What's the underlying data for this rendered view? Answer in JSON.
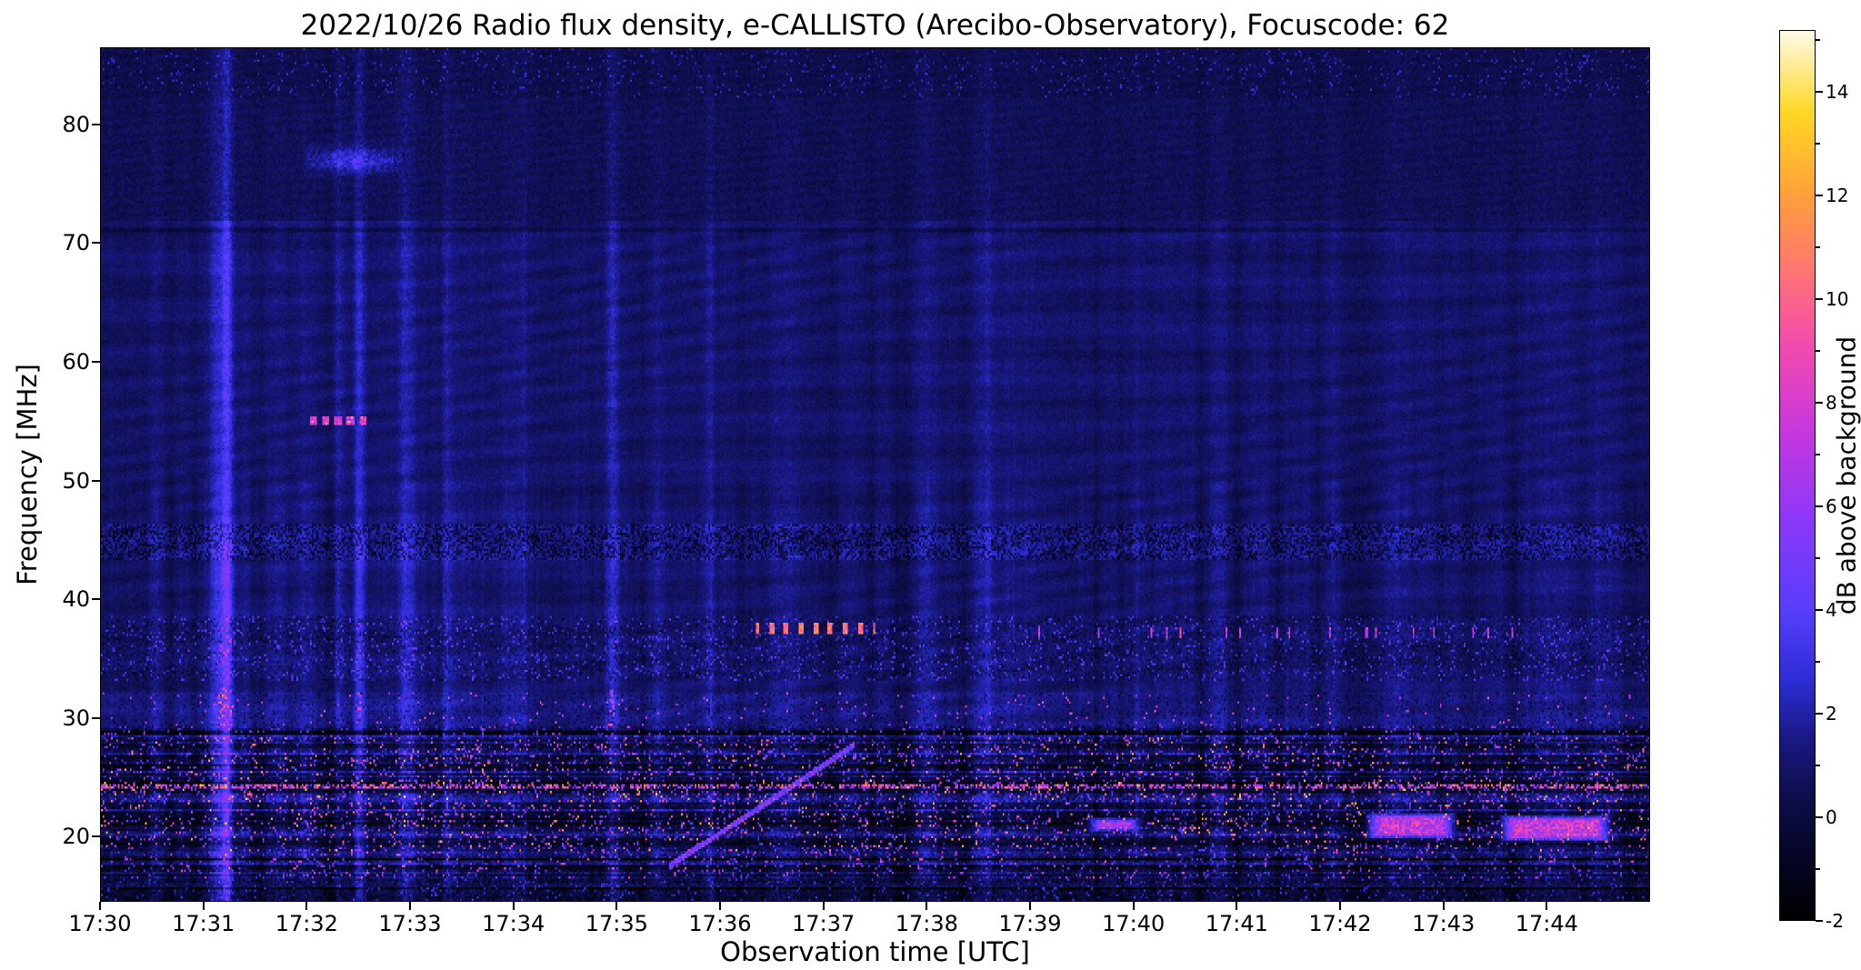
{
  "chart": {
    "title": "2022/10/26  Radio flux density, e-CALLISTO (Arecibo-Observatory), Focuscode: 62",
    "xlabel": "Observation time [UTC]",
    "ylabel": "Frequency [MHz]",
    "colorbar_label": "dB above background"
  },
  "chart_data": {
    "type": "heatmap",
    "title": "2022/10/26  Radio flux density, e-CALLISTO (Arecibo-Observatory), Focuscode: 62",
    "xlabel": "Observation time [UTC]",
    "ylabel": "Frequency [MHz]",
    "x_ticks": [
      "17:30",
      "17:31",
      "17:32",
      "17:33",
      "17:34",
      "17:35",
      "17:36",
      "17:37",
      "17:38",
      "17:39",
      "17:40",
      "17:41",
      "17:42",
      "17:43",
      "17:44"
    ],
    "x_range_minutes": [
      0,
      15
    ],
    "y_ticks": [
      20,
      30,
      40,
      50,
      60,
      70,
      80
    ],
    "y_range_mhz": [
      14.5,
      86.5
    ],
    "grid": false,
    "colorbar": {
      "label": "dB above background",
      "ticks": [
        -2,
        0,
        2,
        4,
        6,
        8,
        10,
        12,
        14
      ],
      "minor_ticks": [
        -1,
        1,
        3,
        5,
        7,
        9,
        11,
        13,
        15
      ],
      "range": [
        -2,
        15.2
      ],
      "position": "right"
    },
    "background_level_db": 0.9,
    "colormap_stops": [
      {
        "t": 0.0,
        "c": [
          0,
          0,
          0
        ]
      },
      {
        "t": 0.07,
        "c": [
          5,
          5,
          38
        ]
      },
      {
        "t": 0.14,
        "c": [
          14,
          14,
          76
        ]
      },
      {
        "t": 0.2,
        "c": [
          24,
          24,
          128
        ]
      },
      {
        "t": 0.27,
        "c": [
          45,
          45,
          215
        ]
      },
      {
        "t": 0.35,
        "c": [
          88,
          62,
          252
        ]
      },
      {
        "t": 0.45,
        "c": [
          140,
          56,
          248
        ]
      },
      {
        "t": 0.55,
        "c": [
          198,
          55,
          222
        ]
      },
      {
        "t": 0.65,
        "c": [
          244,
          76,
          172
        ]
      },
      {
        "t": 0.74,
        "c": [
          255,
          122,
          108
        ]
      },
      {
        "t": 0.82,
        "c": [
          255,
          162,
          56
        ]
      },
      {
        "t": 0.91,
        "c": [
          255,
          216,
          38
        ]
      },
      {
        "t": 1.0,
        "c": [
          255,
          250,
          232
        ]
      }
    ],
    "features": {
      "rfi_bands": [
        {
          "f0": 16.2,
          "f1": 18.6,
          "amp": 0.55
        },
        {
          "f0": 18.6,
          "f1": 22.9,
          "amp": 0.85
        },
        {
          "f0": 22.9,
          "f1": 24.7,
          "amp": 0.95
        },
        {
          "f0": 24.7,
          "f1": 28.3,
          "amp": 0.8
        },
        {
          "f0": 28.3,
          "f1": 29.3,
          "amp": 0.4
        }
      ],
      "vertical_streaks": [
        {
          "t": 1.12,
          "w": 0.05,
          "strength": 1.6
        },
        {
          "t": 1.22,
          "w": 0.035,
          "strength": 3.4
        },
        {
          "t": 2.3,
          "w": 0.04,
          "strength": 1.6
        },
        {
          "t": 2.5,
          "w": 0.035,
          "strength": 2.0
        },
        {
          "t": 2.95,
          "w": 0.05,
          "strength": 1.4
        },
        {
          "t": 3.35,
          "w": 0.03,
          "strength": 0.9
        },
        {
          "t": 4.1,
          "w": 0.04,
          "strength": 0.8
        },
        {
          "t": 4.95,
          "w": 0.045,
          "strength": 1.9
        },
        {
          "t": 5.9,
          "w": 0.03,
          "strength": 0.9
        },
        {
          "t": 8.6,
          "w": 0.03,
          "strength": 0.6
        }
      ],
      "bright_features": [
        {
          "mode": "dashes",
          "t0": 2.02,
          "t1": 2.62,
          "f0": 54.6,
          "f1": 55.4,
          "value": 8.5,
          "label": "55 MHz narrowband burst"
        },
        {
          "mode": "blob",
          "t0": 1.98,
          "t1": 2.92,
          "f0": 75.9,
          "f1": 78.3,
          "value": 2.4,
          "label": "77 MHz enhancement"
        },
        {
          "mode": "dots",
          "t0": 6.35,
          "t1": 7.5,
          "f0": 37.1,
          "f1": 37.9,
          "value": 11,
          "label": "37.5 MHz dotted bursts"
        },
        {
          "mode": "sparse",
          "t0": 9.0,
          "t1": 15.0,
          "f0": 36.7,
          "f1": 37.6,
          "value": 8.5,
          "label": "37 MHz intermittent spikes"
        },
        {
          "mode": "diagonal",
          "t0": 5.5,
          "t1": 7.3,
          "f0": 17.3,
          "f1": 27.6,
          "value": 5.5,
          "label": "drifting RFI carrier"
        },
        {
          "mode": "patch",
          "t0": 12.25,
          "t1": 13.15,
          "f0": 19.6,
          "f1": 21.9,
          "value": 9.5,
          "label": "20 MHz RFI patch"
        },
        {
          "mode": "patch",
          "t0": 13.55,
          "t1": 14.65,
          "f0": 19.4,
          "f1": 21.7,
          "value": 9.8,
          "label": "20 MHz RFI patch"
        },
        {
          "mode": "patch",
          "t0": 9.55,
          "t1": 10.1,
          "f0": 20.2,
          "f1": 21.5,
          "value": 8.5,
          "label": "21 MHz RFI patch"
        }
      ]
    }
  }
}
